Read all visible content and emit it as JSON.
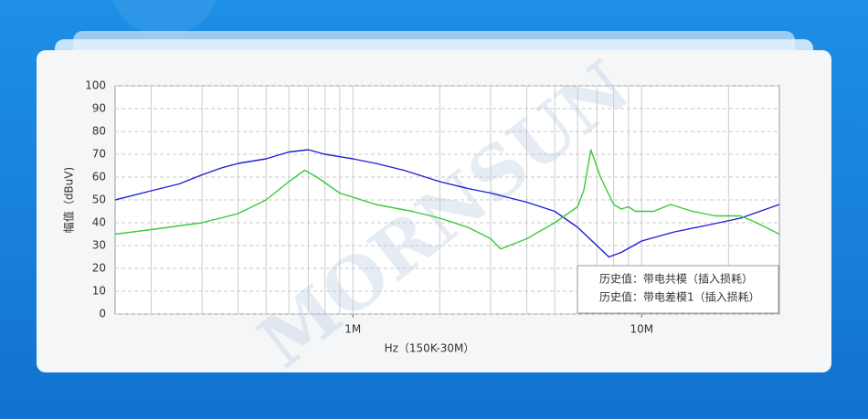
{
  "chart_data": {
    "type": "line",
    "watermark": "MORNSUN",
    "ylabel": "幅值（dBuV)",
    "xlabel": "Hz（150K-30M）",
    "log_x": true,
    "xlim": [
      150000,
      30000000
    ],
    "xticks": [
      {
        "value": 1000000,
        "label": "1M"
      },
      {
        "value": 10000000,
        "label": "10M"
      }
    ],
    "xgrid": [
      200000,
      300000,
      400000,
      500000,
      600000,
      700000,
      800000,
      900000,
      1000000,
      2000000,
      3000000,
      4000000,
      5000000,
      6000000,
      7000000,
      8000000,
      9000000,
      10000000,
      20000000
    ],
    "ylim": [
      0,
      100
    ],
    "yticks": [
      0,
      10,
      20,
      30,
      40,
      50,
      60,
      70,
      80,
      90,
      100
    ],
    "grid": true,
    "legend": "lower right",
    "series": [
      {
        "name": "历史值：带电共模（插入损耗）",
        "color": "#1f1fd6",
        "x": [
          150000,
          200000,
          250000,
          300000,
          350000,
          400000,
          500000,
          600000,
          700000,
          800000,
          1000000,
          1200000,
          1500000,
          2000000,
          2500000,
          3000000,
          4000000,
          5000000,
          6000000,
          7000000,
          7700000,
          8500000,
          10000000,
          13000000,
          17000000,
          22000000,
          30000000
        ],
        "values": [
          50,
          54,
          57,
          61,
          64,
          66,
          68,
          71,
          72,
          70,
          68,
          66,
          63,
          58,
          55,
          53,
          49,
          45,
          38,
          30,
          25,
          27,
          32,
          36,
          39,
          42,
          48
        ]
      },
      {
        "name": "历史值：带电差模1（插入损耗）",
        "color": "#3cc83c",
        "x": [
          150000,
          200000,
          300000,
          400000,
          500000,
          600000,
          680000,
          750000,
          900000,
          1200000,
          1600000,
          2000000,
          2500000,
          3000000,
          3250000,
          4000000,
          5000000,
          6000000,
          6300000,
          6670000,
          7200000,
          8000000,
          8500000,
          9000000,
          9500000,
          11000000,
          12600000,
          15000000,
          18000000,
          22000000,
          25000000,
          30000000
        ],
        "values": [
          35,
          37,
          40,
          44,
          50,
          58,
          63,
          60,
          53,
          48,
          45,
          42,
          38,
          33,
          28.5,
          33,
          40,
          47,
          54,
          72,
          60,
          48,
          46,
          47,
          45,
          45,
          48,
          45,
          43,
          43,
          40,
          35
        ]
      }
    ]
  }
}
